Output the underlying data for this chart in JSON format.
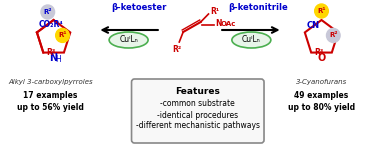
{
  "bg_color": "#ffffff",
  "title": "",
  "fig_width": 3.78,
  "fig_height": 1.52,
  "dpi": 100,
  "left_label": "Alkyl 3-carboxylpyrroles",
  "left_stat1": "17 examples",
  "left_stat2": "up to 56% yield",
  "right_label": "3-Cyanofurans",
  "right_stat1": "49 examples",
  "right_stat2": "up to 80% yield",
  "features_title": "Features",
  "features_lines": [
    "-common substrate",
    "-identical procedures",
    "-different mechanistic pathways"
  ],
  "beta_ketoester_label": "β-ketoester",
  "beta_ketonitrile_label": "β-ketonitrile",
  "catalyst_label": "CuᴵLₙ",
  "arrow_color": "#000000",
  "catalyst_oval_color": "#4CAF50",
  "catalyst_text_color": "#000000",
  "pyrrole_colors": {
    "r1": "#FFD700",
    "r2_circle": "#b0b0d0",
    "ring": "#cc0000",
    "N": "#0000cc",
    "CO2R4": "#0000cc",
    "R1": "#cc0000",
    "R2": "#0000cc",
    "R3": "#cc0000"
  },
  "furan_colors": {
    "r1_circle": "#FFD700",
    "r2_circle": "#b0b0d0",
    "ring": "#cc0000",
    "O": "#cc0000",
    "CN": "#0000cc",
    "R1": "#cc0000",
    "R2": "#cc0000",
    "R3": "#cc0000"
  },
  "oxime_colors": {
    "backbone": "#cc0000",
    "NOAc": "#cc0000"
  },
  "features_box_color": "#f5f5f5",
  "features_border_color": "#888888"
}
